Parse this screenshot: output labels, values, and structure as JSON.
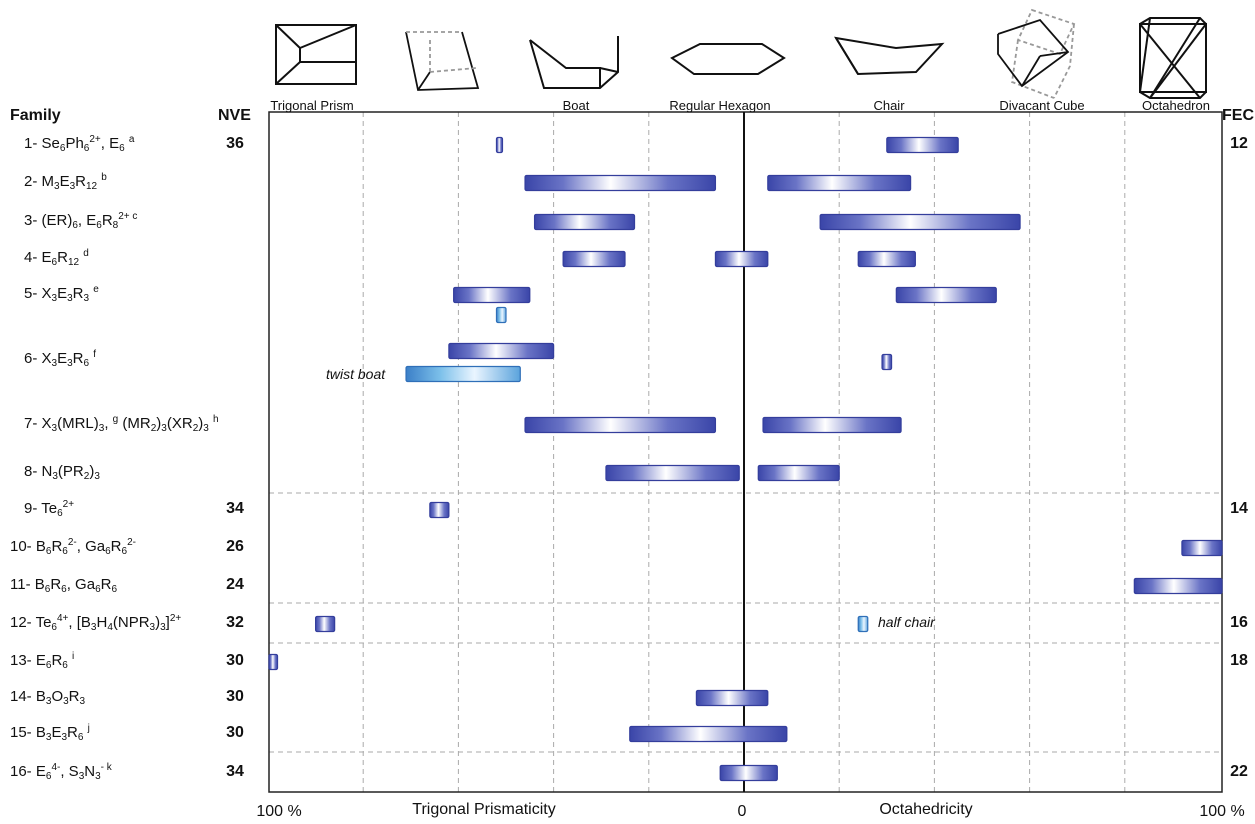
{
  "headers": {
    "family": "Family",
    "nve": "NVE",
    "fec": "FEC"
  },
  "shapes": [
    "Trigonal Prism",
    "",
    "Boat",
    "Regular Hexagon",
    "Chair",
    "Divacant Cube",
    "Octahedron"
  ],
  "axis": {
    "left_end": "100 %",
    "left_label": "Trigonal Prismaticity",
    "center": "0",
    "right_label": "Octahedricity",
    "right_end": "100 %"
  },
  "families": [
    {
      "num": "1-",
      "parts": [
        "Se",
        {
          "sub": "6"
        },
        "Ph",
        {
          "sub": "6"
        },
        {
          "sup": "2+"
        },
        ", E",
        {
          "sub": "6"
        },
        " ",
        {
          "sup": "a"
        }
      ],
      "nve": "36",
      "fec": "12"
    },
    {
      "num": "2-",
      "parts": [
        "M",
        {
          "sub": "3"
        },
        "E",
        {
          "sub": "3"
        },
        "R",
        {
          "sub": "12"
        },
        " ",
        {
          "sup": "b"
        }
      ],
      "nve": "",
      "fec": ""
    },
    {
      "num": "3-",
      "parts": [
        "(ER)",
        {
          "sub": "6"
        },
        ", E",
        {
          "sub": "6"
        },
        "R",
        {
          "sub": "8"
        },
        {
          "sup": "2+  c"
        }
      ],
      "nve": "",
      "fec": ""
    },
    {
      "num": "4-",
      "parts": [
        "E",
        {
          "sub": "6"
        },
        "R",
        {
          "sub": "12"
        },
        " ",
        {
          "sup": "d"
        }
      ],
      "nve": "",
      "fec": ""
    },
    {
      "num": "5-",
      "parts": [
        "X",
        {
          "sub": "3"
        },
        "E",
        {
          "sub": "3"
        },
        "R",
        {
          "sub": "3"
        },
        " ",
        {
          "sup": "e"
        }
      ],
      "nve": "",
      "fec": ""
    },
    {
      "num": "6-",
      "parts": [
        "X",
        {
          "sub": "3"
        },
        "E",
        {
          "sub": "3"
        },
        "R",
        {
          "sub": "6"
        },
        " ",
        {
          "sup": "f"
        }
      ],
      "nve": "",
      "fec": ""
    },
    {
      "num": "7-",
      "parts": [
        "X",
        {
          "sub": "3"
        },
        "(MRL)",
        {
          "sub": "3"
        },
        ", ",
        {
          "sup": "g"
        },
        " (MR",
        {
          "sub": "2"
        },
        ")",
        {
          "sub": "3"
        },
        "(XR",
        {
          "sub": "2"
        },
        ")",
        {
          "sub": "3"
        },
        " ",
        {
          "sup": "h"
        }
      ],
      "nve": "",
      "fec": ""
    },
    {
      "num": "8-",
      "parts": [
        "N",
        {
          "sub": "3"
        },
        "(PR",
        {
          "sub": "2"
        },
        ")",
        {
          "sub": "3"
        }
      ],
      "nve": "",
      "fec": ""
    },
    {
      "num": "9-",
      "parts": [
        "Te",
        {
          "sub": "6"
        },
        {
          "sup": "2+"
        }
      ],
      "nve": "34",
      "fec": "14"
    },
    {
      "num": "10-",
      "parts": [
        "B",
        {
          "sub": "6"
        },
        "R",
        {
          "sub": "6"
        },
        {
          "sup": "2-"
        },
        ", Ga",
        {
          "sub": "6"
        },
        "R",
        {
          "sub": "6"
        },
        {
          "sup": "2-"
        }
      ],
      "nve": "26",
      "fec": ""
    },
    {
      "num": "11-",
      "parts": [
        "B",
        {
          "sub": "6"
        },
        "R",
        {
          "sub": "6"
        },
        ", Ga",
        {
          "sub": "6"
        },
        "R",
        {
          "sub": "6"
        }
      ],
      "nve": "24",
      "fec": ""
    },
    {
      "num": "12-",
      "parts": [
        "Te",
        {
          "sub": "6"
        },
        {
          "sup": "4+"
        },
        ", [B",
        {
          "sub": "3"
        },
        "H",
        {
          "sub": "4"
        },
        "(NPR",
        {
          "sub": "3"
        },
        ")",
        {
          "sub": "3"
        },
        "]",
        {
          "sup": "2+"
        }
      ],
      "nve": "32",
      "fec": "16"
    },
    {
      "num": "13-",
      "parts": [
        "E",
        {
          "sub": "6"
        },
        "R",
        {
          "sub": "6"
        },
        " ",
        {
          "sup": "i"
        }
      ],
      "nve": "30",
      "fec": "18"
    },
    {
      "num": "14-",
      "parts": [
        "B",
        {
          "sub": "3"
        },
        "O",
        {
          "sub": "3"
        },
        "R",
        {
          "sub": "3"
        }
      ],
      "nve": "30",
      "fec": ""
    },
    {
      "num": "15-",
      "parts": [
        "B",
        {
          "sub": "3"
        },
        "E",
        {
          "sub": "3"
        },
        "R",
        {
          "sub": "6"
        },
        " ",
        {
          "sup": "j"
        }
      ],
      "nve": "30",
      "fec": ""
    },
    {
      "num": "16-",
      "parts": [
        "E",
        {
          "sub": "6"
        },
        {
          "sup": "4-"
        },
        ", S",
        {
          "sub": "3"
        },
        "N",
        {
          "sub": "3"
        },
        {
          "sup": "-  k"
        }
      ],
      "nve": "34",
      "fec": "22"
    }
  ],
  "notes": [
    "twist boat",
    "half chair"
  ],
  "chart_data": {
    "type": "bar",
    "orientation": "horizontal floating ranges",
    "x_scale": "percent; negative = trigonal prismaticity (left), positive = octahedricity (right)",
    "xlim": [
      -100,
      100
    ],
    "grid": true,
    "colors": {
      "bar": "#4a55b0",
      "light_bar": "#5aa3dc"
    },
    "bars": [
      {
        "family": "1-",
        "from": -52,
        "to": -51
      },
      {
        "family": "1-",
        "from": 30,
        "to": 45
      },
      {
        "family": "2-",
        "from": -46,
        "to": -6
      },
      {
        "family": "2-",
        "from": 5,
        "to": 35
      },
      {
        "family": "3-",
        "from": -44,
        "to": -23
      },
      {
        "family": "3-",
        "from": 16,
        "to": 58
      },
      {
        "family": "4-",
        "from": -38,
        "to": -25
      },
      {
        "family": "4-",
        "from": -6,
        "to": 5
      },
      {
        "family": "4-",
        "from": 24,
        "to": 36
      },
      {
        "family": "5-",
        "from": -61,
        "to": -45
      },
      {
        "family": "5-",
        "from": -52,
        "to": -50
      },
      {
        "family": "5-",
        "from": 32,
        "to": 53
      },
      {
        "family": "6-",
        "from": -62,
        "to": -40
      },
      {
        "family": "6-",
        "from": -71,
        "to": -47,
        "note": "twist boat"
      },
      {
        "family": "6-",
        "from": 29,
        "to": 31
      },
      {
        "family": "7-",
        "from": -46,
        "to": -6
      },
      {
        "family": "7-",
        "from": 4,
        "to": 33
      },
      {
        "family": "8-",
        "from": -29,
        "to": -1
      },
      {
        "family": "8-",
        "from": 3,
        "to": 20
      },
      {
        "family": "9-",
        "from": -66,
        "to": -62
      },
      {
        "family": "10-",
        "from": 92,
        "to": 102
      },
      {
        "family": "11-",
        "from": 82,
        "to": 102
      },
      {
        "family": "12-",
        "from": -90,
        "to": -86
      },
      {
        "family": "12-",
        "from": 24,
        "to": 26,
        "note": "half chair"
      },
      {
        "family": "13-",
        "from": -100,
        "to": -98
      },
      {
        "family": "14-",
        "from": -10,
        "to": 5
      },
      {
        "family": "15-",
        "from": -24,
        "to": 9
      },
      {
        "family": "16-",
        "from": -5,
        "to": 7
      }
    ]
  }
}
